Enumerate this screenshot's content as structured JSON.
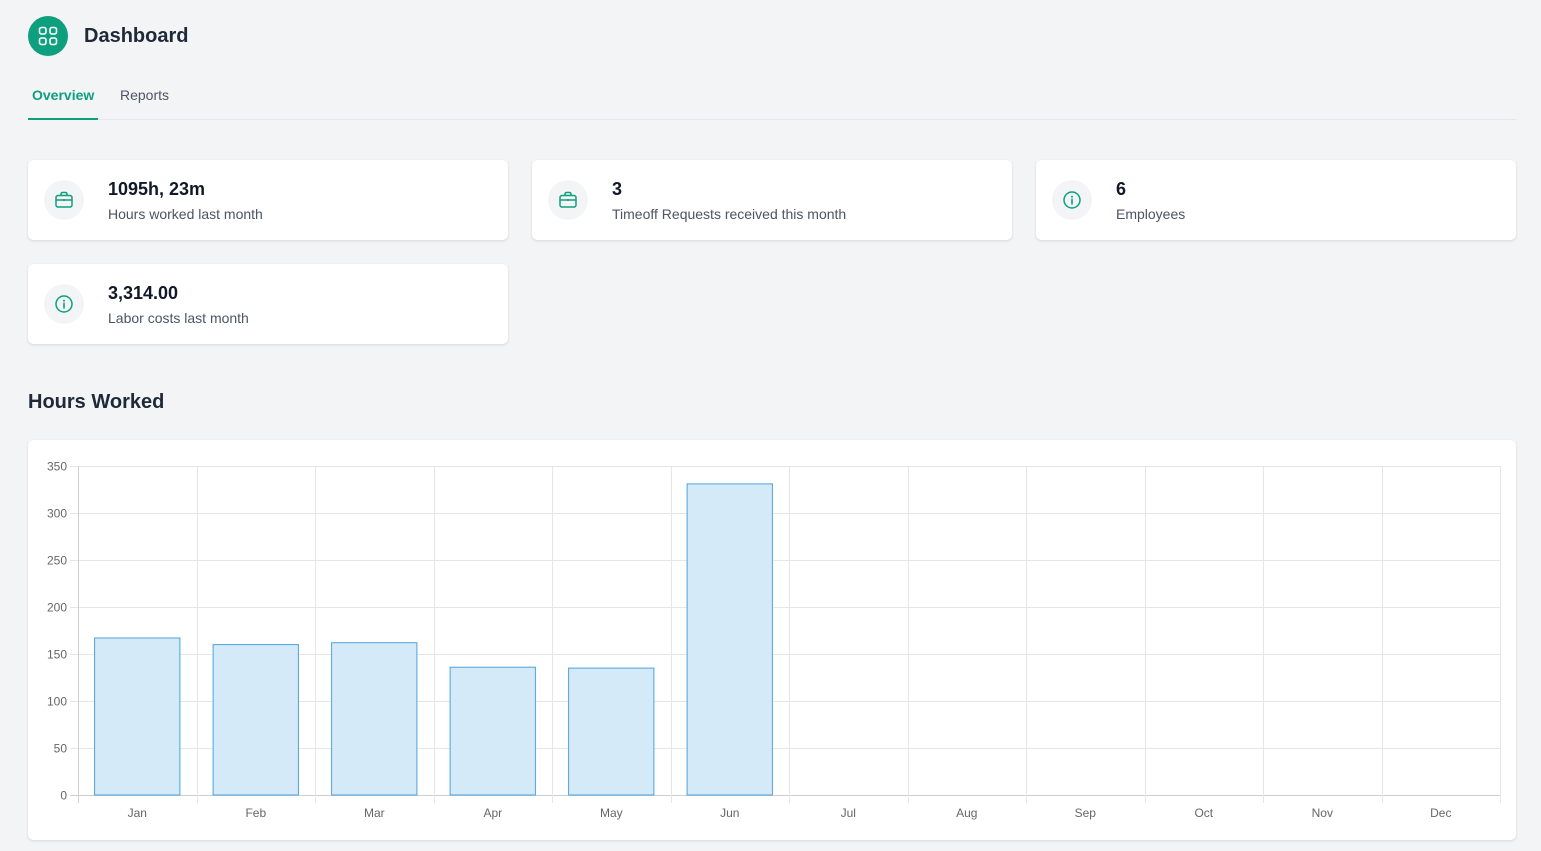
{
  "header": {
    "title": "Dashboard",
    "logo_icon": "grid-icon"
  },
  "tabs": [
    {
      "label": "Overview",
      "active": true
    },
    {
      "label": "Reports",
      "active": false
    }
  ],
  "stats": [
    {
      "value": "1095h, 23m",
      "label": "Hours worked last month",
      "icon": "briefcase-icon"
    },
    {
      "value": "3",
      "label": "Timeoff Requests received this month",
      "icon": "briefcase-icon"
    },
    {
      "value": "6",
      "label": "Employees",
      "icon": "info-icon"
    },
    {
      "value": "3,314.00",
      "label": "Labor costs last month",
      "icon": "info-icon"
    }
  ],
  "section": {
    "title": "Hours Worked"
  },
  "colors": {
    "accent": "#0e9f7e",
    "bar_fill": "#d5eaf8",
    "bar_stroke": "#4aa3df"
  },
  "chart_data": {
    "type": "bar",
    "categories": [
      "Jan",
      "Feb",
      "Mar",
      "Apr",
      "May",
      "Jun",
      "Jul",
      "Aug",
      "Sep",
      "Oct",
      "Nov",
      "Dec"
    ],
    "values": [
      167,
      160,
      162,
      136,
      135,
      331,
      0,
      0,
      0,
      0,
      0,
      0
    ],
    "ylim": [
      0,
      350
    ],
    "yticks": [
      0,
      50,
      100,
      150,
      200,
      250,
      300,
      350
    ],
    "xlabel": "",
    "ylabel": "",
    "grid": true,
    "legend": "none"
  }
}
